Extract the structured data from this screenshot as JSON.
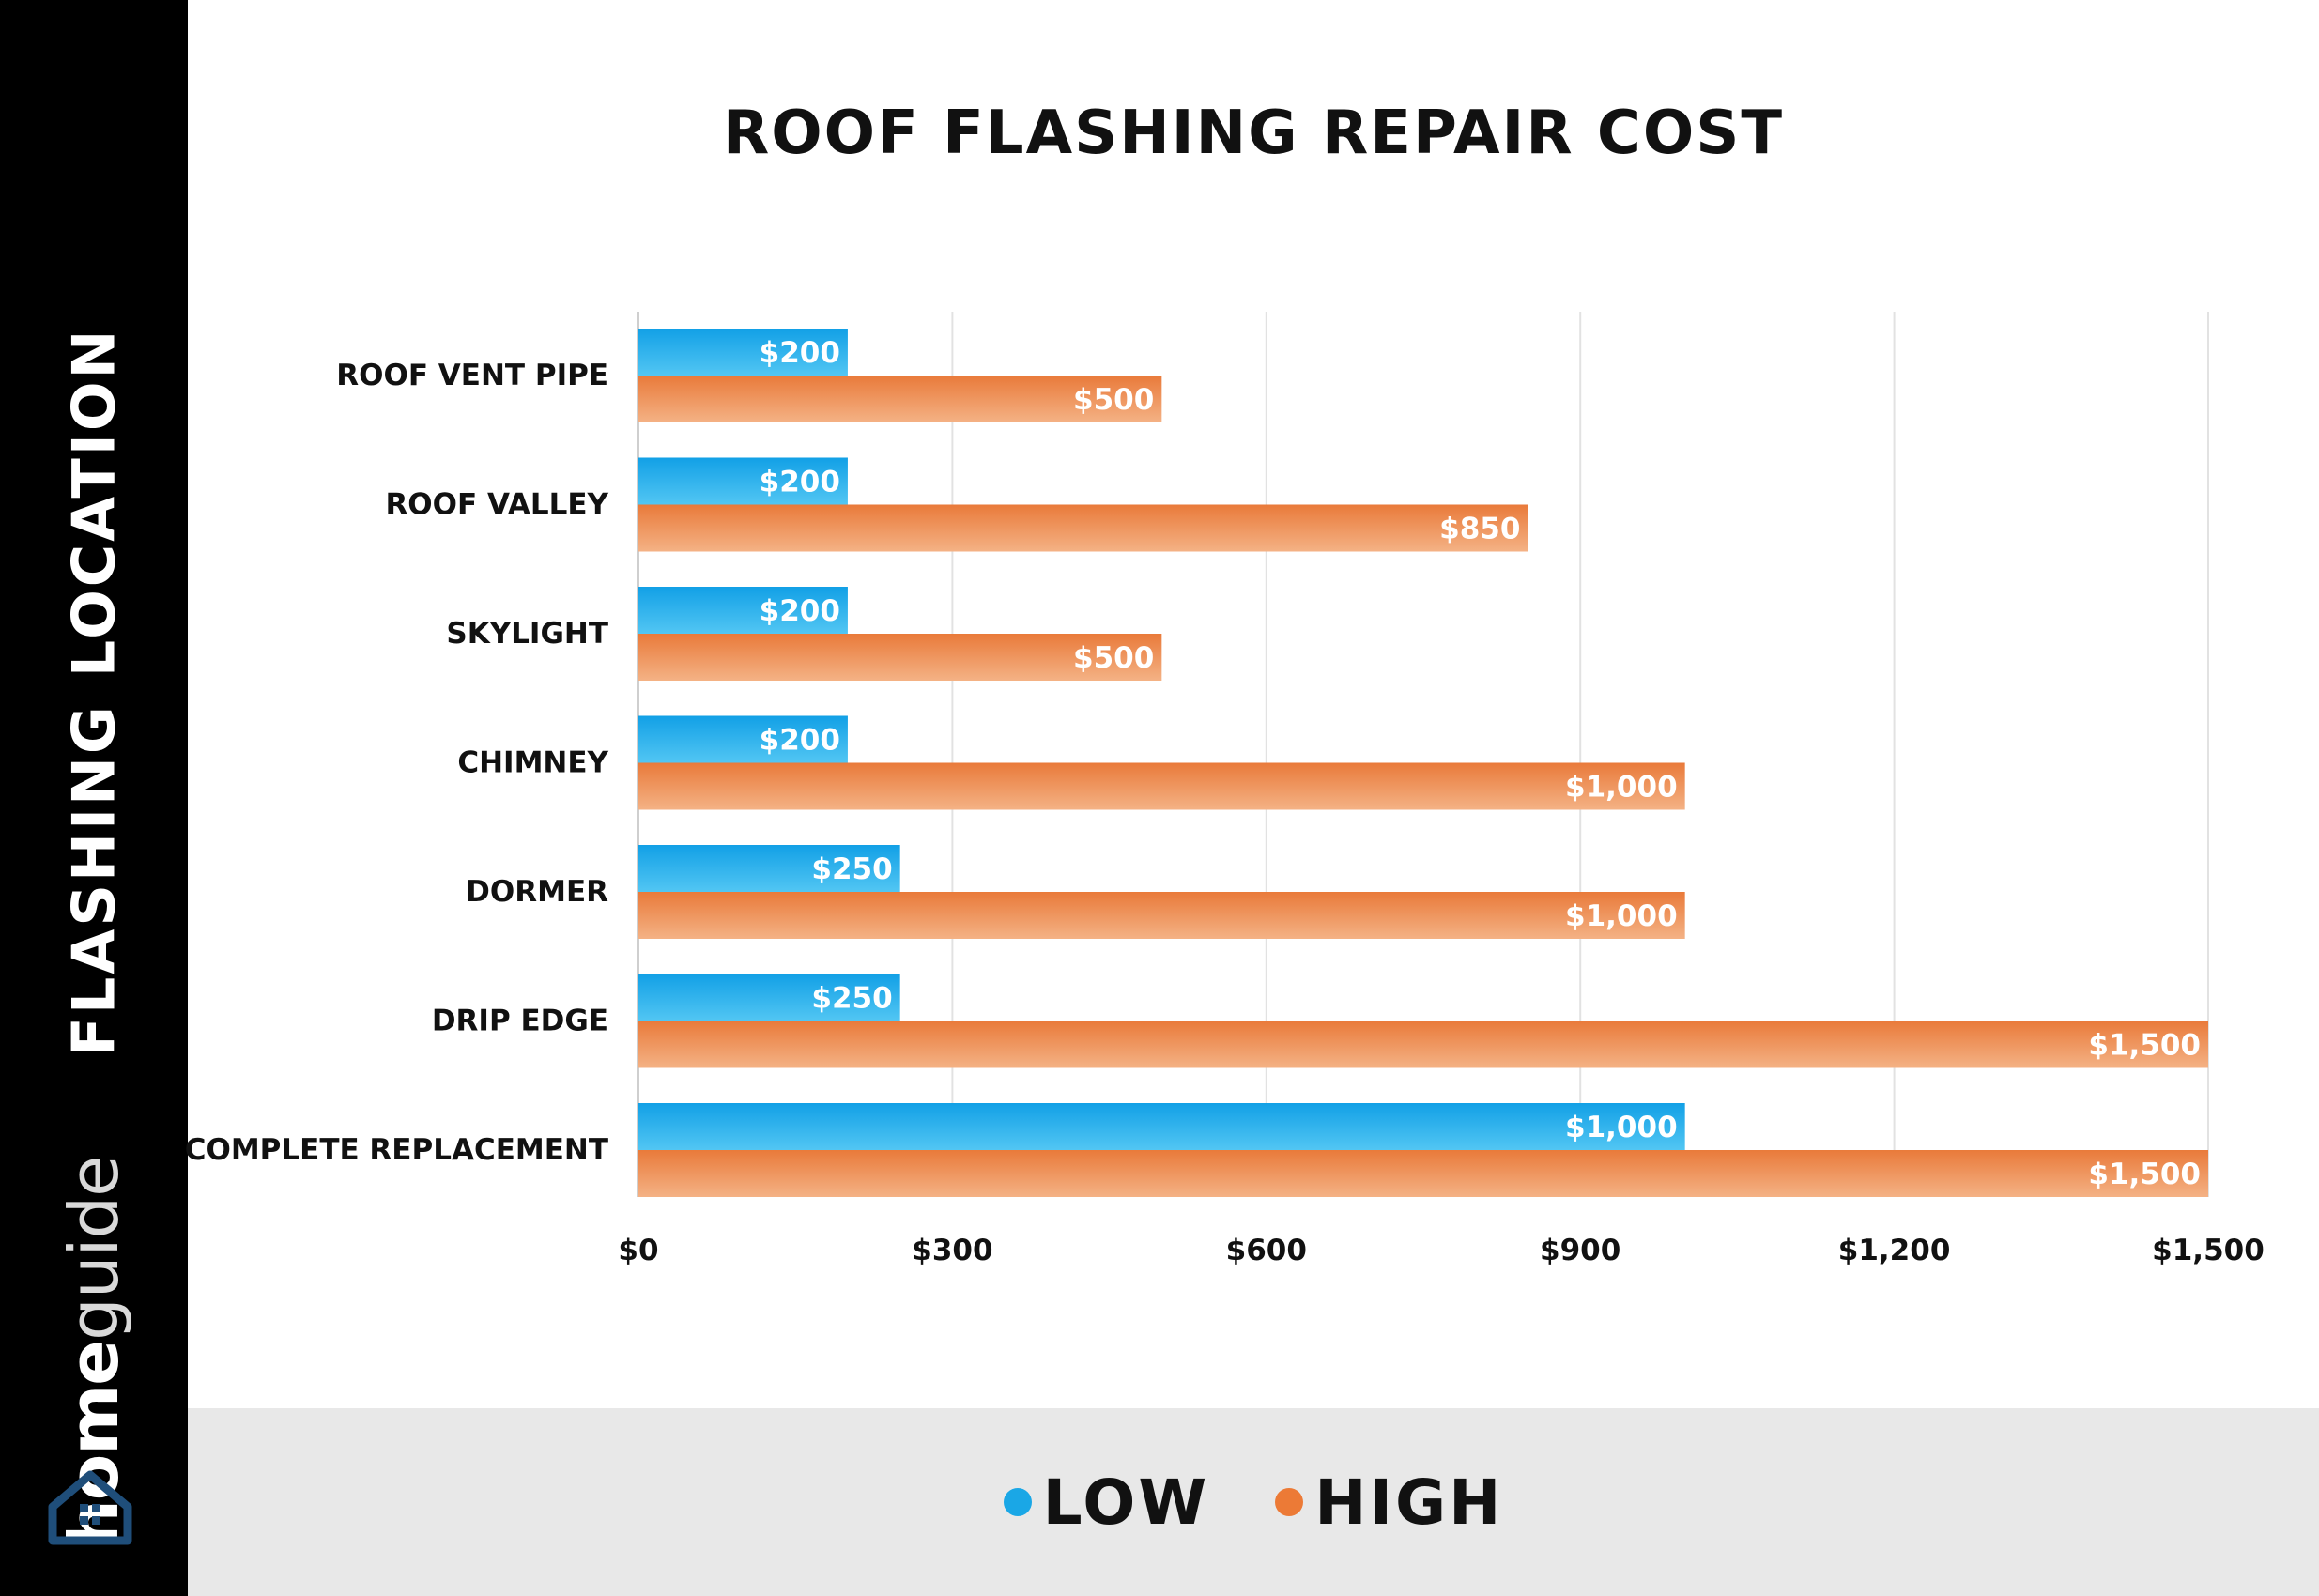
{
  "brand": {
    "home": "home",
    "guide": "guide"
  },
  "sidebar": {
    "axis_label_words": [
      "FLASHING",
      "LOCATION"
    ]
  },
  "legend": {
    "low_label": "LOW",
    "high_label": "HIGH"
  },
  "colors": {
    "low": "#1aa7e6",
    "high": "#ec7a36",
    "sidebar": "#000000",
    "legend_band": "#e8e8e8",
    "icon": "#1f4e7a"
  },
  "chart_data": {
    "type": "bar",
    "orientation": "horizontal",
    "title": "ROOF FLASHING REPAIR COST",
    "ylabel": "FLASHING LOCATION",
    "xlabel": "",
    "categories": [
      "ROOF VENT PIPE",
      "ROOF VALLEY",
      "SKYLIGHT",
      "CHIMNEY",
      "DORMER",
      "DRIP EDGE",
      "COMPLETE REPLACEMENT"
    ],
    "series": [
      {
        "name": "LOW",
        "values": [
          200,
          200,
          200,
          200,
          250,
          250,
          1000
        ],
        "labels": [
          "$200",
          "$200",
          "$200",
          "$200",
          "$250",
          "$250",
          "$1,000"
        ]
      },
      {
        "name": "HIGH",
        "values": [
          500,
          850,
          500,
          1000,
          1000,
          1500,
          1500
        ],
        "labels": [
          "$500",
          "$850",
          "$500",
          "$1,000",
          "$1,000",
          "$1,500",
          "$1,500"
        ]
      }
    ],
    "xlim": [
      0,
      1500
    ],
    "xticks": [
      0,
      300,
      600,
      900,
      1200,
      1500
    ],
    "xtick_labels": [
      "$0",
      "$300",
      "$600",
      "$900",
      "$1,200",
      "$1,500"
    ],
    "grid": true,
    "legend_position": "bottom"
  }
}
